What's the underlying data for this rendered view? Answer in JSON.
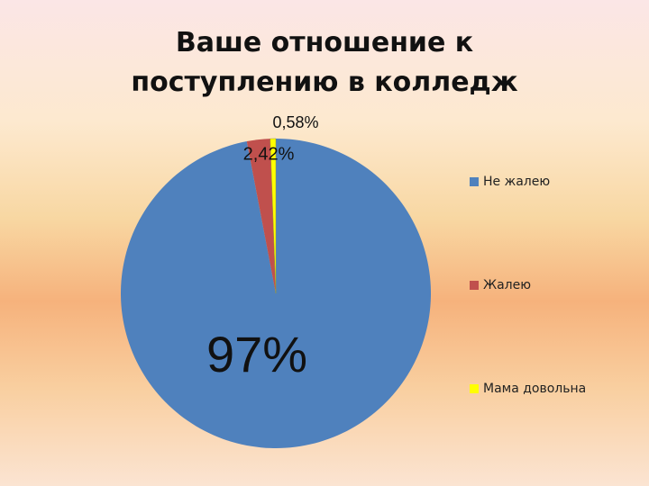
{
  "chart_data": {
    "type": "pie",
    "title": "Ваше отношение к поступлению в колледж",
    "categories": [
      "Не жалею",
      "Жалею",
      "Мама довольна"
    ],
    "values": [
      97,
      2.42,
      0.58
    ],
    "value_labels": [
      "97%",
      "2,42%",
      "0,58%"
    ],
    "colors": [
      "#4f81bd",
      "#c0504d",
      "#ffff00"
    ],
    "legend": "right"
  }
}
